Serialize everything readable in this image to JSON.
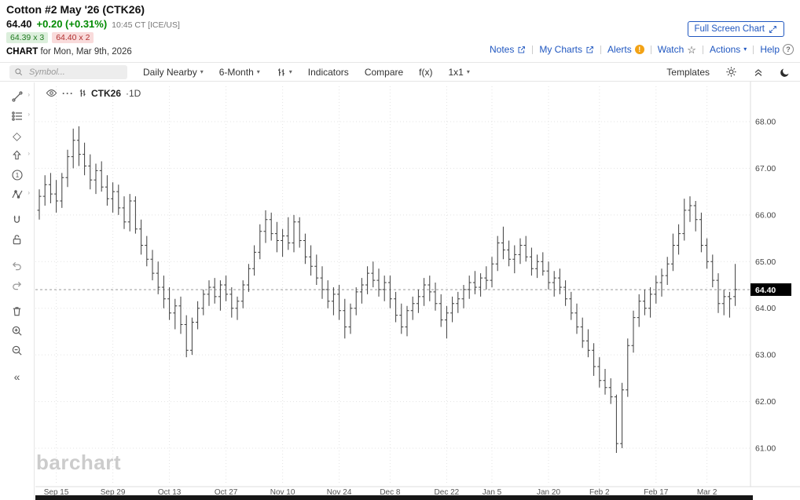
{
  "header": {
    "title": "Cotton #2 May '26 (CTK26)",
    "last_price": "64.40",
    "change": "+0.20 (+0.31%)",
    "quote_time": "10:45 CT [ICE/US]",
    "bid": "64.39 x 3",
    "ask": "64.40 x 2",
    "chart_word": "CHART",
    "chart_date": "for Mon, Mar 9th, 2026",
    "full_screen_button": "Full Screen Chart",
    "links": [
      {
        "label": "Notes"
      },
      {
        "label": "My Charts"
      },
      {
        "label": "Alerts"
      },
      {
        "label": "Watch"
      },
      {
        "label": "Actions"
      },
      {
        "label": "Help"
      }
    ]
  },
  "toolbar": {
    "search_placeholder": "Symbol...",
    "frequency": "Daily Nearby",
    "range": "6-Month",
    "indicators": "Indicators",
    "compare": "Compare",
    "fx": "f(x)",
    "grid": "1x1",
    "templates": "Templates"
  },
  "legend": {
    "symbol": "CTK26",
    "interval": "·1D"
  },
  "icons": {
    "caret_down": "▾",
    "star": "☆",
    "collapse_left": "«",
    "more": "···",
    "one": "1",
    "diamond": "◇",
    "alert_mark": "!",
    "question_mark": "?"
  },
  "watermark": "barchart",
  "chart_data": {
    "type": "ohlc-bar",
    "symbol": "CTK26",
    "interval": "1D",
    "title": "Cotton #2 May '26 (CTK26) Daily Nearby 6-Month",
    "last_price": 64.4,
    "ylim": [
      60.3,
      68.8
    ],
    "y_ticks": [
      61,
      62,
      63,
      64,
      65,
      66,
      67,
      68
    ],
    "y_tick_labels": [
      "61.00",
      "62.00",
      "63.00",
      "64.00",
      "65.00",
      "66.00",
      "67.00",
      "68.00"
    ],
    "x_tick_labels": [
      "Sep 15",
      "Sep 29",
      "Oct 13",
      "Oct 27",
      "Nov 10",
      "Nov 24",
      "Dec 8",
      "Dec 22",
      "Jan 5",
      "Jan 20",
      "Feb 2",
      "Feb 17",
      "Mar 2"
    ],
    "grid": true,
    "bars_format": [
      "date",
      "open",
      "high",
      "low",
      "close"
    ],
    "bars": [
      [
        "Sep 10",
        66.1,
        66.55,
        65.9,
        66.4
      ],
      [
        "Sep 11",
        66.4,
        66.85,
        66.2,
        66.65
      ],
      [
        "Sep 12",
        66.65,
        66.9,
        66.25,
        66.45
      ],
      [
        "Sep 15",
        66.45,
        66.75,
        66.05,
        66.3
      ],
      [
        "Sep 16",
        66.3,
        66.9,
        66.15,
        66.8
      ],
      [
        "Sep 17",
        66.8,
        67.4,
        66.6,
        67.25
      ],
      [
        "Sep 18",
        67.25,
        67.85,
        67.0,
        67.6
      ],
      [
        "Sep 19",
        67.6,
        67.9,
        67.05,
        67.3
      ],
      [
        "Sep 22",
        67.3,
        67.55,
        66.85,
        67.05
      ],
      [
        "Sep 23",
        67.05,
        67.3,
        66.55,
        66.75
      ],
      [
        "Sep 24",
        66.75,
        67.1,
        66.45,
        66.95
      ],
      [
        "Sep 25",
        66.95,
        67.15,
        66.5,
        66.6
      ],
      [
        "Sep 26",
        66.6,
        66.85,
        66.2,
        66.35
      ],
      [
        "Sep 29",
        66.35,
        66.7,
        66.05,
        66.5
      ],
      [
        "Sep 30",
        66.5,
        66.65,
        66.0,
        66.15
      ],
      [
        "Oct 1",
        66.15,
        66.4,
        65.7,
        65.85
      ],
      [
        "Oct 2",
        65.85,
        66.45,
        65.65,
        66.3
      ],
      [
        "Oct 3",
        66.3,
        66.4,
        65.6,
        65.7
      ],
      [
        "Oct 6",
        65.7,
        65.9,
        65.15,
        65.35
      ],
      [
        "Oct 7",
        65.35,
        65.55,
        64.9,
        65.05
      ],
      [
        "Oct 8",
        65.05,
        65.25,
        64.6,
        64.75
      ],
      [
        "Oct 9",
        64.75,
        65.0,
        64.3,
        64.45
      ],
      [
        "Oct 10",
        64.45,
        64.7,
        64.0,
        64.2
      ],
      [
        "Oct 13",
        64.2,
        64.45,
        63.75,
        63.9
      ],
      [
        "Oct 14",
        63.9,
        64.2,
        63.55,
        64.05
      ],
      [
        "Oct 15",
        64.05,
        64.25,
        63.45,
        63.65
      ],
      [
        "Oct 16",
        63.65,
        63.85,
        62.95,
        63.1
      ],
      [
        "Oct 17",
        63.1,
        63.8,
        63.0,
        63.7
      ],
      [
        "Oct 20",
        63.7,
        64.15,
        63.55,
        64.0
      ],
      [
        "Oct 21",
        64.0,
        64.4,
        63.85,
        64.3
      ],
      [
        "Oct 22",
        64.3,
        64.6,
        64.05,
        64.45
      ],
      [
        "Oct 23",
        64.45,
        64.65,
        64.1,
        64.25
      ],
      [
        "Oct 24",
        64.25,
        64.6,
        63.95,
        64.5
      ],
      [
        "Oct 27",
        64.5,
        64.7,
        64.15,
        64.3
      ],
      [
        "Oct 28",
        64.3,
        64.45,
        63.8,
        64.0
      ],
      [
        "Oct 29",
        64.0,
        64.25,
        63.75,
        64.15
      ],
      [
        "Oct 30",
        64.15,
        64.6,
        64.0,
        64.5
      ],
      [
        "Oct 31",
        64.5,
        64.95,
        64.35,
        64.85
      ],
      [
        "Nov 3",
        64.85,
        65.35,
        64.7,
        65.2
      ],
      [
        "Nov 4",
        65.2,
        65.8,
        65.05,
        65.65
      ],
      [
        "Nov 5",
        65.65,
        66.1,
        65.4,
        65.9
      ],
      [
        "Nov 6",
        65.9,
        66.05,
        65.45,
        65.6
      ],
      [
        "Nov 7",
        65.6,
        65.85,
        65.2,
        65.45
      ],
      [
        "Nov 10",
        65.45,
        65.7,
        65.1,
        65.55
      ],
      [
        "Nov 11",
        65.55,
        65.95,
        65.25,
        65.4
      ],
      [
        "Nov 12",
        65.4,
        66.0,
        65.2,
        65.85
      ],
      [
        "Nov 13",
        65.85,
        65.95,
        65.3,
        65.45
      ],
      [
        "Nov 14",
        65.45,
        65.6,
        64.95,
        65.1
      ],
      [
        "Nov 17",
        65.1,
        65.35,
        64.7,
        64.9
      ],
      [
        "Nov 18",
        64.9,
        65.15,
        64.5,
        64.65
      ],
      [
        "Nov 19",
        64.65,
        64.9,
        64.2,
        64.4
      ],
      [
        "Nov 20",
        64.4,
        64.6,
        64.0,
        64.15
      ],
      [
        "Nov 21",
        64.15,
        64.45,
        63.85,
        64.3
      ],
      [
        "Nov 24",
        64.3,
        64.5,
        63.75,
        63.95
      ],
      [
        "Nov 25",
        63.95,
        64.2,
        63.35,
        63.6
      ],
      [
        "Nov 26",
        63.6,
        64.1,
        63.45,
        64.0
      ],
      [
        "Nov 28",
        64.0,
        64.45,
        63.85,
        64.35
      ],
      [
        "Dec 1",
        64.35,
        64.65,
        64.1,
        64.5
      ],
      [
        "Dec 2",
        64.5,
        64.9,
        64.3,
        64.75
      ],
      [
        "Dec 3",
        64.75,
        65.0,
        64.45,
        64.6
      ],
      [
        "Dec 4",
        64.6,
        64.85,
        64.25,
        64.4
      ],
      [
        "Dec 5",
        64.4,
        64.7,
        64.15,
        64.55
      ],
      [
        "Dec 8",
        64.55,
        64.7,
        64.0,
        64.2
      ],
      [
        "Dec 9",
        64.2,
        64.35,
        63.7,
        63.85
      ],
      [
        "Dec 10",
        63.85,
        64.1,
        63.45,
        63.6
      ],
      [
        "Dec 11",
        63.6,
        64.05,
        63.4,
        63.95
      ],
      [
        "Dec 12",
        63.95,
        64.25,
        63.75,
        64.1
      ],
      [
        "Dec 15",
        64.1,
        64.4,
        63.9,
        64.25
      ],
      [
        "Dec 16",
        64.25,
        64.65,
        64.05,
        64.5
      ],
      [
        "Dec 17",
        64.5,
        64.7,
        64.15,
        64.35
      ],
      [
        "Dec 18",
        64.35,
        64.55,
        63.95,
        64.1
      ],
      [
        "Dec 19",
        64.1,
        64.3,
        63.6,
        63.75
      ],
      [
        "Dec 22",
        63.75,
        64.05,
        63.35,
        63.9
      ],
      [
        "Dec 23",
        63.9,
        64.25,
        63.7,
        64.1
      ],
      [
        "Dec 24",
        64.1,
        64.35,
        63.9,
        64.2
      ],
      [
        "Dec 26",
        64.2,
        64.5,
        64.0,
        64.4
      ],
      [
        "Dec 29",
        64.4,
        64.7,
        64.2,
        64.55
      ],
      [
        "Dec 30",
        64.55,
        64.8,
        64.3,
        64.45
      ],
      [
        "Dec 31",
        64.45,
        64.75,
        64.25,
        64.65
      ],
      [
        "Jan 2",
        64.65,
        64.9,
        64.4,
        64.6
      ],
      [
        "Jan 5",
        64.6,
        65.1,
        64.45,
        64.95
      ],
      [
        "Jan 6",
        64.95,
        65.55,
        64.8,
        65.4
      ],
      [
        "Jan 7",
        65.4,
        65.75,
        65.05,
        65.25
      ],
      [
        "Jan 8",
        65.25,
        65.45,
        64.9,
        65.05
      ],
      [
        "Jan 9",
        65.05,
        65.35,
        64.75,
        65.15
      ],
      [
        "Jan 12",
        65.15,
        65.5,
        64.95,
        65.35
      ],
      [
        "Jan 13",
        65.35,
        65.55,
        65.0,
        65.1
      ],
      [
        "Jan 14",
        65.1,
        65.3,
        64.7,
        64.85
      ],
      [
        "Jan 15",
        64.85,
        65.15,
        64.65,
        65.0
      ],
      [
        "Jan 16",
        65.0,
        65.2,
        64.7,
        64.8
      ],
      [
        "Jan 20",
        64.8,
        65.0,
        64.4,
        64.55
      ],
      [
        "Jan 21",
        64.55,
        64.8,
        64.25,
        64.65
      ],
      [
        "Jan 22",
        64.65,
        64.85,
        64.3,
        64.45
      ],
      [
        "Jan 23",
        64.45,
        64.6,
        64.05,
        64.2
      ],
      [
        "Jan 26",
        64.2,
        64.35,
        63.75,
        63.9
      ],
      [
        "Jan 27",
        63.9,
        64.1,
        63.45,
        63.6
      ],
      [
        "Jan 28",
        63.6,
        63.8,
        63.15,
        63.3
      ],
      [
        "Jan 29",
        63.3,
        63.55,
        62.95,
        63.1
      ],
      [
        "Jan 30",
        63.1,
        63.25,
        62.55,
        62.75
      ],
      [
        "Feb 2",
        62.75,
        62.95,
        62.3,
        62.45
      ],
      [
        "Feb 3",
        62.45,
        62.7,
        62.15,
        62.3
      ],
      [
        "Feb 4",
        62.3,
        62.5,
        61.95,
        62.1
      ],
      [
        "Feb 5",
        62.1,
        62.15,
        60.9,
        61.1
      ],
      [
        "Feb 6",
        61.1,
        62.4,
        61.0,
        62.25
      ],
      [
        "Feb 9",
        62.25,
        63.35,
        62.1,
        63.2
      ],
      [
        "Feb 10",
        63.2,
        63.95,
        63.05,
        63.8
      ],
      [
        "Feb 11",
        63.8,
        64.3,
        63.6,
        64.15
      ],
      [
        "Feb 12",
        64.15,
        64.4,
        63.85,
        64.0
      ],
      [
        "Feb 13",
        64.0,
        64.45,
        63.8,
        64.3
      ],
      [
        "Feb 17",
        64.3,
        64.7,
        64.1,
        64.55
      ],
      [
        "Feb 18",
        64.55,
        64.85,
        64.25,
        64.7
      ],
      [
        "Feb 19",
        64.7,
        65.1,
        64.5,
        64.95
      ],
      [
        "Feb 20",
        64.95,
        65.6,
        64.8,
        65.35
      ],
      [
        "Feb 23",
        65.35,
        65.8,
        65.15,
        65.6
      ],
      [
        "Feb 24",
        65.6,
        66.35,
        65.45,
        66.1
      ],
      [
        "Feb 25",
        66.1,
        66.4,
        65.85,
        66.2
      ],
      [
        "Feb 26",
        66.2,
        66.3,
        65.65,
        65.9
      ],
      [
        "Feb 27",
        65.9,
        66.05,
        65.2,
        65.35
      ],
      [
        "Mar 2",
        65.35,
        65.5,
        64.85,
        65.0
      ],
      [
        "Mar 3",
        65.0,
        65.15,
        64.45,
        64.6
      ],
      [
        "Mar 4",
        64.6,
        64.75,
        63.9,
        64.1
      ],
      [
        "Mar 5",
        64.1,
        64.4,
        63.85,
        64.25
      ],
      [
        "Mar 6",
        64.25,
        64.35,
        63.8,
        64.2
      ],
      [
        "Mar 9",
        64.25,
        64.95,
        64.05,
        64.4
      ]
    ]
  }
}
